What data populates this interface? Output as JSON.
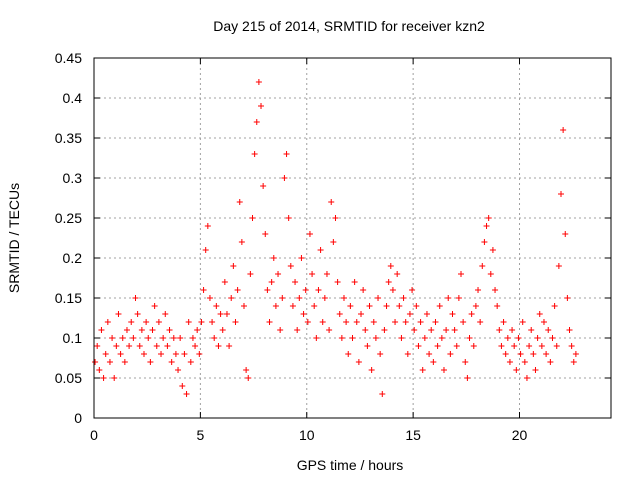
{
  "chart_data": {
    "type": "scatter",
    "title": "Day 215 of 2014, SRMTID for receiver kzn2",
    "xlabel": "GPS time / hours",
    "ylabel": "SRMTID / TECUs",
    "xlim": [
      0,
      24.3
    ],
    "ylim": [
      0,
      0.45
    ],
    "x_ticks": [
      0,
      5,
      10,
      15,
      20
    ],
    "x_tick_labels": [
      "0",
      "5",
      "10",
      "15",
      "20"
    ],
    "y_ticks": [
      0,
      0.05,
      0.1,
      0.15,
      0.2,
      0.25,
      0.3,
      0.35,
      0.4,
      0.45
    ],
    "y_tick_labels": [
      "0",
      "0.05",
      "0.1",
      "0.15",
      "0.2",
      "0.25",
      "0.3",
      "0.35",
      "0.4",
      "0.45"
    ],
    "grid": true,
    "marker": "+",
    "series": [
      {
        "name": "SRMTID",
        "color": "#ff0000",
        "points": [
          [
            0.05,
            0.07
          ],
          [
            0.15,
            0.09
          ],
          [
            0.25,
            0.06
          ],
          [
            0.35,
            0.11
          ],
          [
            0.45,
            0.05
          ],
          [
            0.55,
            0.08
          ],
          [
            0.65,
            0.12
          ],
          [
            0.75,
            0.07
          ],
          [
            0.85,
            0.1
          ],
          [
            0.95,
            0.05
          ],
          [
            1.05,
            0.09
          ],
          [
            1.15,
            0.13
          ],
          [
            1.25,
            0.08
          ],
          [
            1.35,
            0.1
          ],
          [
            1.45,
            0.07
          ],
          [
            1.55,
            0.11
          ],
          [
            1.65,
            0.09
          ],
          [
            1.75,
            0.12
          ],
          [
            1.85,
            0.1
          ],
          [
            1.95,
            0.15
          ],
          [
            2.05,
            0.13
          ],
          [
            2.15,
            0.09
          ],
          [
            2.25,
            0.11
          ],
          [
            2.35,
            0.08
          ],
          [
            2.45,
            0.12
          ],
          [
            2.55,
            0.1
          ],
          [
            2.65,
            0.07
          ],
          [
            2.75,
            0.11
          ],
          [
            2.85,
            0.14
          ],
          [
            2.95,
            0.09
          ],
          [
            3.05,
            0.12
          ],
          [
            3.15,
            0.08
          ],
          [
            3.25,
            0.1
          ],
          [
            3.35,
            0.13
          ],
          [
            3.45,
            0.09
          ],
          [
            3.55,
            0.11
          ],
          [
            3.65,
            0.07
          ],
          [
            3.75,
            0.1
          ],
          [
            3.85,
            0.08
          ],
          [
            3.95,
            0.06
          ],
          [
            4.05,
            0.1
          ],
          [
            4.15,
            0.04
          ],
          [
            4.25,
            0.08
          ],
          [
            4.35,
            0.03
          ],
          [
            4.45,
            0.12
          ],
          [
            4.55,
            0.07
          ],
          [
            4.65,
            0.1
          ],
          [
            4.75,
            0.09
          ],
          [
            4.85,
            0.11
          ],
          [
            4.95,
            0.08
          ],
          [
            5.05,
            0.12
          ],
          [
            5.15,
            0.16
          ],
          [
            5.25,
            0.21
          ],
          [
            5.35,
            0.24
          ],
          [
            5.45,
            0.15
          ],
          [
            5.55,
            0.12
          ],
          [
            5.65,
            0.1
          ],
          [
            5.75,
            0.14
          ],
          [
            5.85,
            0.09
          ],
          [
            5.95,
            0.13
          ],
          [
            6.05,
            0.11
          ],
          [
            6.15,
            0.17
          ],
          [
            6.25,
            0.13
          ],
          [
            6.35,
            0.09
          ],
          [
            6.45,
            0.15
          ],
          [
            6.55,
            0.19
          ],
          [
            6.65,
            0.12
          ],
          [
            6.75,
            0.16
          ],
          [
            6.85,
            0.27
          ],
          [
            6.95,
            0.22
          ],
          [
            7.05,
            0.14
          ],
          [
            7.15,
            0.06
          ],
          [
            7.25,
            0.05
          ],
          [
            7.35,
            0.18
          ],
          [
            7.45,
            0.25
          ],
          [
            7.55,
            0.33
          ],
          [
            7.65,
            0.37
          ],
          [
            7.75,
            0.42
          ],
          [
            7.85,
            0.39
          ],
          [
            7.95,
            0.29
          ],
          [
            8.05,
            0.23
          ],
          [
            8.15,
            0.16
          ],
          [
            8.25,
            0.12
          ],
          [
            8.35,
            0.17
          ],
          [
            8.45,
            0.2
          ],
          [
            8.55,
            0.14
          ],
          [
            8.65,
            0.18
          ],
          [
            8.75,
            0.11
          ],
          [
            8.85,
            0.15
          ],
          [
            8.95,
            0.3
          ],
          [
            9.05,
            0.33
          ],
          [
            9.15,
            0.25
          ],
          [
            9.25,
            0.19
          ],
          [
            9.35,
            0.14
          ],
          [
            9.45,
            0.17
          ],
          [
            9.55,
            0.11
          ],
          [
            9.65,
            0.15
          ],
          [
            9.75,
            0.2
          ],
          [
            9.85,
            0.13
          ],
          [
            9.95,
            0.16
          ],
          [
            10.05,
            0.12
          ],
          [
            10.15,
            0.23
          ],
          [
            10.25,
            0.18
          ],
          [
            10.35,
            0.14
          ],
          [
            10.45,
            0.1
          ],
          [
            10.55,
            0.16
          ],
          [
            10.65,
            0.21
          ],
          [
            10.75,
            0.12
          ],
          [
            10.85,
            0.15
          ],
          [
            10.95,
            0.18
          ],
          [
            11.05,
            0.11
          ],
          [
            11.15,
            0.27
          ],
          [
            11.25,
            0.22
          ],
          [
            11.35,
            0.25
          ],
          [
            11.45,
            0.17
          ],
          [
            11.55,
            0.13
          ],
          [
            11.65,
            0.1
          ],
          [
            11.75,
            0.15
          ],
          [
            11.85,
            0.12
          ],
          [
            11.95,
            0.08
          ],
          [
            12.05,
            0.14
          ],
          [
            12.15,
            0.1
          ],
          [
            12.25,
            0.17
          ],
          [
            12.35,
            0.12
          ],
          [
            12.45,
            0.07
          ],
          [
            12.55,
            0.13
          ],
          [
            12.65,
            0.16
          ],
          [
            12.75,
            0.11
          ],
          [
            12.85,
            0.09
          ],
          [
            12.95,
            0.14
          ],
          [
            13.05,
            0.06
          ],
          [
            13.15,
            0.12
          ],
          [
            13.25,
            0.1
          ],
          [
            13.35,
            0.15
          ],
          [
            13.45,
            0.08
          ],
          [
            13.55,
            0.03
          ],
          [
            13.65,
            0.11
          ],
          [
            13.75,
            0.14
          ],
          [
            13.85,
            0.17
          ],
          [
            13.95,
            0.19
          ],
          [
            14.05,
            0.16
          ],
          [
            14.15,
            0.12
          ],
          [
            14.25,
            0.18
          ],
          [
            14.35,
            0.14
          ],
          [
            14.45,
            0.1
          ],
          [
            14.55,
            0.15
          ],
          [
            14.65,
            0.12
          ],
          [
            14.75,
            0.08
          ],
          [
            14.85,
            0.13
          ],
          [
            14.95,
            0.16
          ],
          [
            15.05,
            0.11
          ],
          [
            15.15,
            0.14
          ],
          [
            15.25,
            0.09
          ],
          [
            15.35,
            0.12
          ],
          [
            15.45,
            0.06
          ],
          [
            15.55,
            0.1
          ],
          [
            15.65,
            0.13
          ],
          [
            15.75,
            0.08
          ],
          [
            15.85,
            0.11
          ],
          [
            15.95,
            0.07
          ],
          [
            16.05,
            0.12
          ],
          [
            16.15,
            0.09
          ],
          [
            16.25,
            0.14
          ],
          [
            16.35,
            0.1
          ],
          [
            16.45,
            0.06
          ],
          [
            16.55,
            0.11
          ],
          [
            16.65,
            0.15
          ],
          [
            16.75,
            0.08
          ],
          [
            16.85,
            0.13
          ],
          [
            16.95,
            0.11
          ],
          [
            17.05,
            0.09
          ],
          [
            17.15,
            0.15
          ],
          [
            17.25,
            0.18
          ],
          [
            17.35,
            0.12
          ],
          [
            17.45,
            0.07
          ],
          [
            17.55,
            0.05
          ],
          [
            17.65,
            0.1
          ],
          [
            17.75,
            0.13
          ],
          [
            17.85,
            0.09
          ],
          [
            17.95,
            0.14
          ],
          [
            18.05,
            0.16
          ],
          [
            18.15,
            0.12
          ],
          [
            18.25,
            0.19
          ],
          [
            18.35,
            0.22
          ],
          [
            18.45,
            0.24
          ],
          [
            18.55,
            0.25
          ],
          [
            18.65,
            0.18
          ],
          [
            18.75,
            0.21
          ],
          [
            18.85,
            0.16
          ],
          [
            18.95,
            0.14
          ],
          [
            19.05,
            0.11
          ],
          [
            19.15,
            0.09
          ],
          [
            19.25,
            0.12
          ],
          [
            19.35,
            0.08
          ],
          [
            19.45,
            0.1
          ],
          [
            19.55,
            0.07
          ],
          [
            19.65,
            0.11
          ],
          [
            19.75,
            0.09
          ],
          [
            19.85,
            0.06
          ],
          [
            19.95,
            0.1
          ],
          [
            20.05,
            0.08
          ],
          [
            20.15,
            0.12
          ],
          [
            20.25,
            0.07
          ],
          [
            20.35,
            0.05
          ],
          [
            20.45,
            0.09
          ],
          [
            20.55,
            0.11
          ],
          [
            20.65,
            0.08
          ],
          [
            20.75,
            0.06
          ],
          [
            20.85,
            0.1
          ],
          [
            20.95,
            0.13
          ],
          [
            21.05,
            0.09
          ],
          [
            21.15,
            0.12
          ],
          [
            21.25,
            0.08
          ],
          [
            21.35,
            0.11
          ],
          [
            21.45,
            0.07
          ],
          [
            21.55,
            0.1
          ],
          [
            21.65,
            0.14
          ],
          [
            21.75,
            0.09
          ],
          [
            21.85,
            0.19
          ],
          [
            21.95,
            0.28
          ],
          [
            22.05,
            0.36
          ],
          [
            22.15,
            0.23
          ],
          [
            22.25,
            0.15
          ],
          [
            22.35,
            0.11
          ],
          [
            22.45,
            0.09
          ],
          [
            22.55,
            0.07
          ],
          [
            22.65,
            0.08
          ]
        ]
      }
    ]
  }
}
